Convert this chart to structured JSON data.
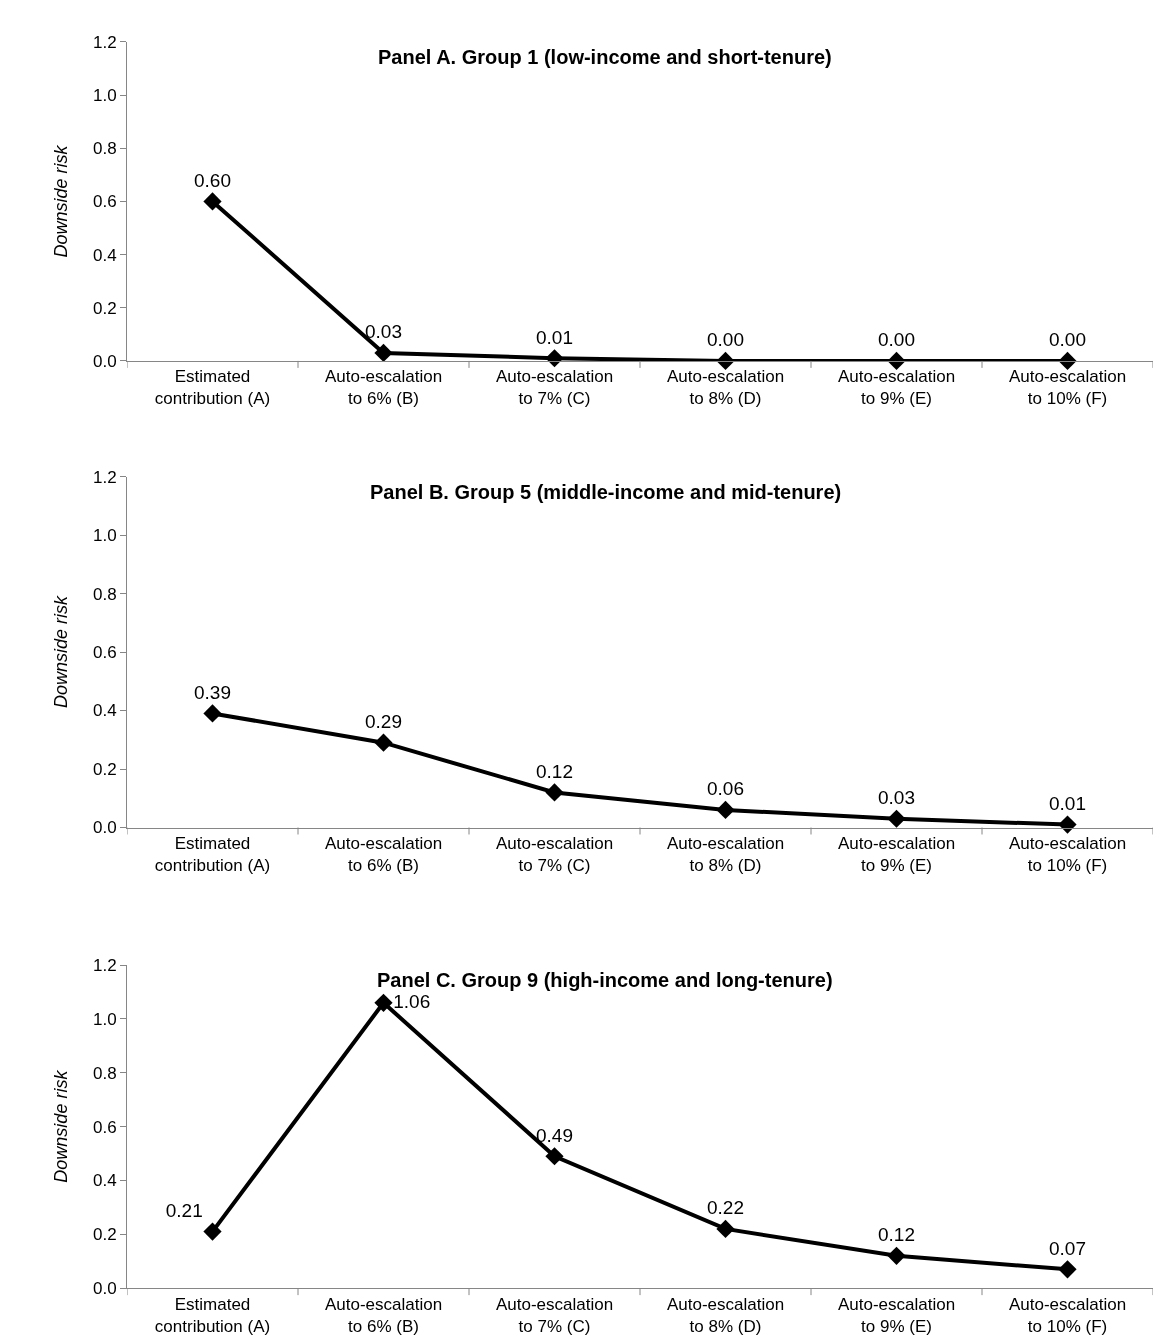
{
  "chart_data": [
    {
      "type": "line",
      "title": "Panel A. Group 1 (low-income and short-tenure)",
      "ylabel": "Downside risk",
      "categories": [
        "Estimated\ncontribution (A)",
        "Auto-escalation\nto 6% (B)",
        "Auto-escalation\nto 7% (C)",
        "Auto-escalation\nto 8% (D)",
        "Auto-escalation\nto 9% (E)",
        "Auto-escalation\nto 10% (F)"
      ],
      "series": [
        {
          "color": "#000000",
          "values": [
            0.6,
            0.03,
            0.01,
            0.0,
            0.0,
            0.0
          ],
          "value_labels": [
            "0.60",
            "0.03",
            "0.01",
            "0.00",
            "0.00",
            "0.00"
          ]
        }
      ],
      "ylim": [
        0,
        1.2
      ],
      "yticks": [
        {
          "value": 0,
          "label": "0.0"
        },
        {
          "value": 0.2,
          "label": "0.2"
        },
        {
          "value": 0.4,
          "label": "0.4"
        },
        {
          "value": 0.6,
          "label": "0.6"
        },
        {
          "value": 0.8,
          "label": "0.8"
        },
        {
          "value": 1.0,
          "label": "1.0"
        },
        {
          "value": 1.2,
          "label": "1.2"
        }
      ],
      "marker": "diamond",
      "line_style": "solid"
    },
    {
      "type": "line",
      "title": "Panel B. Group 5 (middle-income and mid-tenure)",
      "ylabel": "Downside risk",
      "categories": [
        "Estimated\ncontribution (A)",
        "Auto-escalation\nto 6% (B)",
        "Auto-escalation\nto 7% (C)",
        "Auto-escalation\nto 8% (D)",
        "Auto-escalation\nto 9% (E)",
        "Auto-escalation\nto 10% (F)"
      ],
      "series": [
        {
          "color": "#000000",
          "values": [
            0.39,
            0.29,
            0.12,
            0.06,
            0.03,
            0.01
          ],
          "value_labels": [
            "0.39",
            "0.29",
            "0.12",
            "0.06",
            "0.03",
            "0.01"
          ]
        }
      ],
      "ylim": [
        0,
        1.2
      ],
      "yticks": [
        {
          "value": 0,
          "label": "0.0"
        },
        {
          "value": 0.2,
          "label": "0.2"
        },
        {
          "value": 0.4,
          "label": "0.4"
        },
        {
          "value": 0.6,
          "label": "0.6"
        },
        {
          "value": 0.8,
          "label": "0.8"
        },
        {
          "value": 1.0,
          "label": "1.0"
        },
        {
          "value": 1.2,
          "label": "1.2"
        }
      ],
      "marker": "diamond",
      "line_style": "solid"
    },
    {
      "type": "line",
      "title": "Panel C. Group 9 (high-income and long-tenure)",
      "ylabel": "Downside risk",
      "categories": [
        "Estimated\ncontribution (A)",
        "Auto-escalation\nto 6% (B)",
        "Auto-escalation\nto 7% (C)",
        "Auto-escalation\nto 8% (D)",
        "Auto-escalation\nto 9% (E)",
        "Auto-escalation\nto 10% (F)"
      ],
      "series": [
        {
          "color": "#000000",
          "values": [
            0.21,
            1.06,
            0.49,
            0.22,
            0.12,
            0.07
          ],
          "value_labels": [
            "0.21",
            "1.06",
            "0.49",
            "0.22",
            "0.12",
            "0.07"
          ]
        }
      ],
      "ylim": [
        0,
        1.2
      ],
      "yticks": [
        {
          "value": 0,
          "label": "0.0"
        },
        {
          "value": 0.2,
          "label": "0.2"
        },
        {
          "value": 0.4,
          "label": "0.4"
        },
        {
          "value": 0.6,
          "label": "0.6"
        },
        {
          "value": 0.8,
          "label": "0.8"
        },
        {
          "value": 1.0,
          "label": "1.0"
        },
        {
          "value": 1.2,
          "label": "1.2"
        }
      ],
      "marker": "diamond",
      "line_style": "solid"
    }
  ]
}
